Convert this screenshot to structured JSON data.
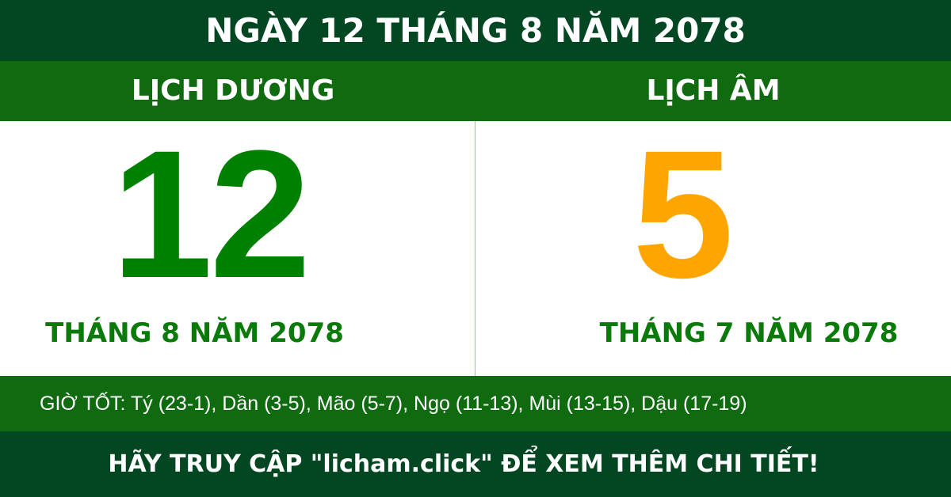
{
  "title": "NGÀY 12 THÁNG 8 NĂM 2078",
  "solar": {
    "heading": "LỊCH DƯƠNG",
    "day": "12",
    "month_year": "THÁNG 8 NĂM 2078",
    "color": "#008000"
  },
  "lunar": {
    "heading": "LỊCH ÂM",
    "day": "5",
    "month_year": "THÁNG 7 NĂM 2078",
    "color": "#ffa500"
  },
  "good_hours": "GIỜ TỐT: Tý (23-1), Dần (3-5), Mão (5-7), Ngọ (11-13), Mùi (13-15), Dậu (17-19)",
  "footer": "HÃY TRUY CẬP \"licham.click\" ĐỂ XEM THÊM CHI TIẾT!",
  "colors": {
    "dark_green": "#034722",
    "green": "#106b10"
  }
}
